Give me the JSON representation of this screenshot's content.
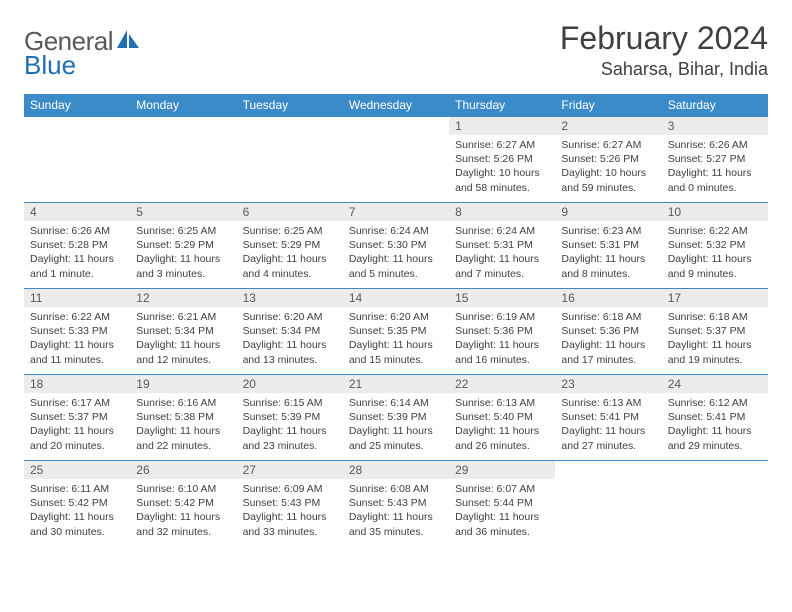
{
  "brand": {
    "word1": "General",
    "word2": "Blue"
  },
  "title": "February 2024",
  "location": "Saharsa, Bihar, India",
  "colors": {
    "header_bg": "#3b8bc9",
    "header_text": "#ffffff",
    "daynum_bg": "#ececec",
    "border": "#3b8bc9",
    "text": "#404040",
    "logo_gray": "#5a5a5a",
    "logo_blue": "#1f6fb2"
  },
  "weekdays": [
    "Sunday",
    "Monday",
    "Tuesday",
    "Wednesday",
    "Thursday",
    "Friday",
    "Saturday"
  ],
  "weeks": [
    [
      {
        "n": "",
        "sunrise": "",
        "sunset": "",
        "daylight": ""
      },
      {
        "n": "",
        "sunrise": "",
        "sunset": "",
        "daylight": ""
      },
      {
        "n": "",
        "sunrise": "",
        "sunset": "",
        "daylight": ""
      },
      {
        "n": "",
        "sunrise": "",
        "sunset": "",
        "daylight": ""
      },
      {
        "n": "1",
        "sunrise": "Sunrise: 6:27 AM",
        "sunset": "Sunset: 5:26 PM",
        "daylight": "Daylight: 10 hours and 58 minutes."
      },
      {
        "n": "2",
        "sunrise": "Sunrise: 6:27 AM",
        "sunset": "Sunset: 5:26 PM",
        "daylight": "Daylight: 10 hours and 59 minutes."
      },
      {
        "n": "3",
        "sunrise": "Sunrise: 6:26 AM",
        "sunset": "Sunset: 5:27 PM",
        "daylight": "Daylight: 11 hours and 0 minutes."
      }
    ],
    [
      {
        "n": "4",
        "sunrise": "Sunrise: 6:26 AM",
        "sunset": "Sunset: 5:28 PM",
        "daylight": "Daylight: 11 hours and 1 minute."
      },
      {
        "n": "5",
        "sunrise": "Sunrise: 6:25 AM",
        "sunset": "Sunset: 5:29 PM",
        "daylight": "Daylight: 11 hours and 3 minutes."
      },
      {
        "n": "6",
        "sunrise": "Sunrise: 6:25 AM",
        "sunset": "Sunset: 5:29 PM",
        "daylight": "Daylight: 11 hours and 4 minutes."
      },
      {
        "n": "7",
        "sunrise": "Sunrise: 6:24 AM",
        "sunset": "Sunset: 5:30 PM",
        "daylight": "Daylight: 11 hours and 5 minutes."
      },
      {
        "n": "8",
        "sunrise": "Sunrise: 6:24 AM",
        "sunset": "Sunset: 5:31 PM",
        "daylight": "Daylight: 11 hours and 7 minutes."
      },
      {
        "n": "9",
        "sunrise": "Sunrise: 6:23 AM",
        "sunset": "Sunset: 5:31 PM",
        "daylight": "Daylight: 11 hours and 8 minutes."
      },
      {
        "n": "10",
        "sunrise": "Sunrise: 6:22 AM",
        "sunset": "Sunset: 5:32 PM",
        "daylight": "Daylight: 11 hours and 9 minutes."
      }
    ],
    [
      {
        "n": "11",
        "sunrise": "Sunrise: 6:22 AM",
        "sunset": "Sunset: 5:33 PM",
        "daylight": "Daylight: 11 hours and 11 minutes."
      },
      {
        "n": "12",
        "sunrise": "Sunrise: 6:21 AM",
        "sunset": "Sunset: 5:34 PM",
        "daylight": "Daylight: 11 hours and 12 minutes."
      },
      {
        "n": "13",
        "sunrise": "Sunrise: 6:20 AM",
        "sunset": "Sunset: 5:34 PM",
        "daylight": "Daylight: 11 hours and 13 minutes."
      },
      {
        "n": "14",
        "sunrise": "Sunrise: 6:20 AM",
        "sunset": "Sunset: 5:35 PM",
        "daylight": "Daylight: 11 hours and 15 minutes."
      },
      {
        "n": "15",
        "sunrise": "Sunrise: 6:19 AM",
        "sunset": "Sunset: 5:36 PM",
        "daylight": "Daylight: 11 hours and 16 minutes."
      },
      {
        "n": "16",
        "sunrise": "Sunrise: 6:18 AM",
        "sunset": "Sunset: 5:36 PM",
        "daylight": "Daylight: 11 hours and 17 minutes."
      },
      {
        "n": "17",
        "sunrise": "Sunrise: 6:18 AM",
        "sunset": "Sunset: 5:37 PM",
        "daylight": "Daylight: 11 hours and 19 minutes."
      }
    ],
    [
      {
        "n": "18",
        "sunrise": "Sunrise: 6:17 AM",
        "sunset": "Sunset: 5:37 PM",
        "daylight": "Daylight: 11 hours and 20 minutes."
      },
      {
        "n": "19",
        "sunrise": "Sunrise: 6:16 AM",
        "sunset": "Sunset: 5:38 PM",
        "daylight": "Daylight: 11 hours and 22 minutes."
      },
      {
        "n": "20",
        "sunrise": "Sunrise: 6:15 AM",
        "sunset": "Sunset: 5:39 PM",
        "daylight": "Daylight: 11 hours and 23 minutes."
      },
      {
        "n": "21",
        "sunrise": "Sunrise: 6:14 AM",
        "sunset": "Sunset: 5:39 PM",
        "daylight": "Daylight: 11 hours and 25 minutes."
      },
      {
        "n": "22",
        "sunrise": "Sunrise: 6:13 AM",
        "sunset": "Sunset: 5:40 PM",
        "daylight": "Daylight: 11 hours and 26 minutes."
      },
      {
        "n": "23",
        "sunrise": "Sunrise: 6:13 AM",
        "sunset": "Sunset: 5:41 PM",
        "daylight": "Daylight: 11 hours and 27 minutes."
      },
      {
        "n": "24",
        "sunrise": "Sunrise: 6:12 AM",
        "sunset": "Sunset: 5:41 PM",
        "daylight": "Daylight: 11 hours and 29 minutes."
      }
    ],
    [
      {
        "n": "25",
        "sunrise": "Sunrise: 6:11 AM",
        "sunset": "Sunset: 5:42 PM",
        "daylight": "Daylight: 11 hours and 30 minutes."
      },
      {
        "n": "26",
        "sunrise": "Sunrise: 6:10 AM",
        "sunset": "Sunset: 5:42 PM",
        "daylight": "Daylight: 11 hours and 32 minutes."
      },
      {
        "n": "27",
        "sunrise": "Sunrise: 6:09 AM",
        "sunset": "Sunset: 5:43 PM",
        "daylight": "Daylight: 11 hours and 33 minutes."
      },
      {
        "n": "28",
        "sunrise": "Sunrise: 6:08 AM",
        "sunset": "Sunset: 5:43 PM",
        "daylight": "Daylight: 11 hours and 35 minutes."
      },
      {
        "n": "29",
        "sunrise": "Sunrise: 6:07 AM",
        "sunset": "Sunset: 5:44 PM",
        "daylight": "Daylight: 11 hours and 36 minutes."
      },
      {
        "n": "",
        "sunrise": "",
        "sunset": "",
        "daylight": ""
      },
      {
        "n": "",
        "sunrise": "",
        "sunset": "",
        "daylight": ""
      }
    ]
  ]
}
